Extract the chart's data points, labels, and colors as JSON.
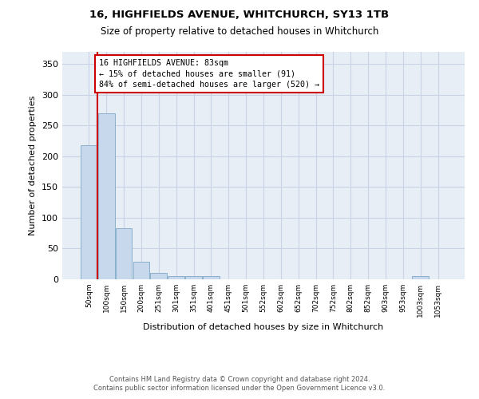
{
  "title": "16, HIGHFIELDS AVENUE, WHITCHURCH, SY13 1TB",
  "subtitle": "Size of property relative to detached houses in Whitchurch",
  "xlabel": "Distribution of detached houses by size in Whitchurch",
  "ylabel": "Number of detached properties",
  "bar_color": "#c8d8ec",
  "bar_edgecolor": "#8ab0cc",
  "grid_color": "#c8d4e4",
  "background_color": "#e8eef6",
  "bins": [
    "50sqm",
    "100sqm",
    "150sqm",
    "200sqm",
    "251sqm",
    "301sqm",
    "351sqm",
    "401sqm",
    "451sqm",
    "501sqm",
    "552sqm",
    "602sqm",
    "652sqm",
    "702sqm",
    "752sqm",
    "802sqm",
    "852sqm",
    "903sqm",
    "953sqm",
    "1003sqm",
    "1053sqm"
  ],
  "values": [
    218,
    270,
    83,
    29,
    11,
    5,
    5,
    5,
    0,
    0,
    0,
    0,
    0,
    0,
    0,
    0,
    0,
    0,
    0,
    5,
    0
  ],
  "ylim": [
    0,
    370
  ],
  "yticks": [
    0,
    50,
    100,
    150,
    200,
    250,
    300,
    350
  ],
  "property_line_color": "#cc0000",
  "property_line_x": 0.5,
  "annotation_text": "16 HIGHFIELDS AVENUE: 83sqm\n← 15% of detached houses are smaller (91)\n84% of semi-detached houses are larger (520) →",
  "footer1": "Contains HM Land Registry data © Crown copyright and database right 2024.",
  "footer2": "Contains public sector information licensed under the Open Government Licence v3.0."
}
